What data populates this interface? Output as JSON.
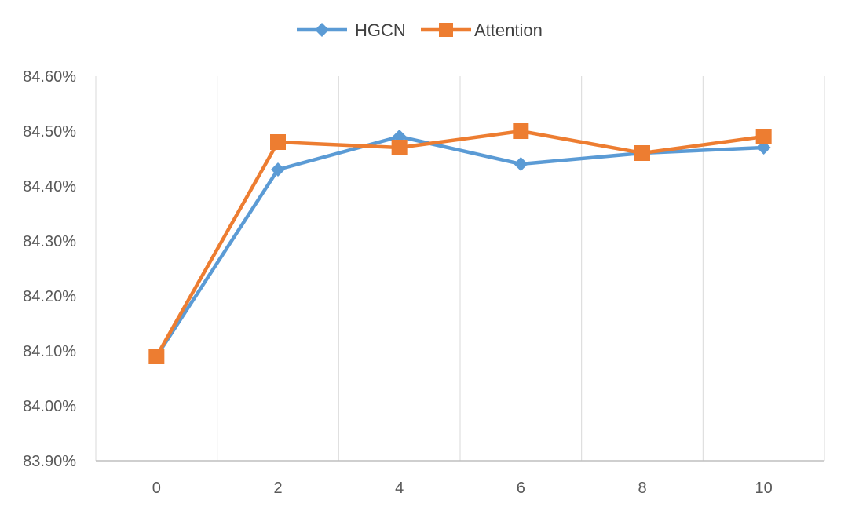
{
  "chart_data": {
    "type": "line",
    "x": [
      0,
      2,
      4,
      6,
      8,
      10
    ],
    "x_tick_labels": [
      "0",
      "2",
      "4",
      "6",
      "8",
      "10"
    ],
    "y_tick_labels": [
      "83.90%",
      "84.00%",
      "84.10%",
      "84.20%",
      "84.30%",
      "84.40%",
      "84.50%",
      "84.60%"
    ],
    "ylim": [
      83.9,
      84.6
    ],
    "y_unit": "%",
    "grid": "vertical",
    "legend_position": "top-center",
    "series": [
      {
        "name": "HGCN",
        "color": "#5B9BD5",
        "marker": "diamond",
        "values": [
          84.09,
          84.43,
          84.49,
          84.44,
          84.46,
          84.47
        ]
      },
      {
        "name": "Attention",
        "color": "#ED7D31",
        "marker": "square",
        "values": [
          84.09,
          84.48,
          84.47,
          84.5,
          84.46,
          84.49
        ]
      }
    ]
  }
}
